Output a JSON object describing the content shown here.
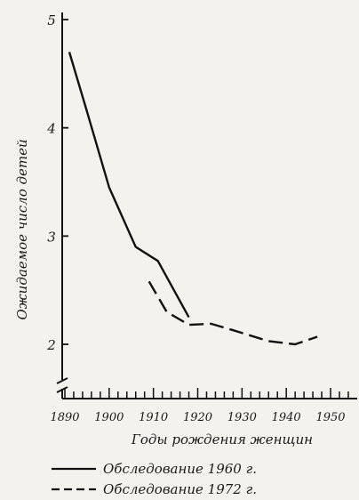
{
  "chart_data": {
    "type": "line",
    "xlabel": "Годы рождения женщин",
    "ylabel": "Ожидаемое число детей",
    "xlim": [
      1890,
      1955
    ],
    "ylim": [
      1.5,
      5
    ],
    "x_ticks": [
      1890,
      1900,
      1910,
      1920,
      1930,
      1940,
      1950
    ],
    "x_tick_labels": [
      "1890",
      "1900",
      "1910",
      "1920",
      "1930",
      "1940",
      "1950"
    ],
    "y_ticks": [
      2,
      3,
      4,
      5
    ],
    "y_tick_labels": [
      "2",
      "3",
      "4",
      "5"
    ],
    "y_axis_break": true,
    "grid": false,
    "legend_position": "bottom-left",
    "series": [
      {
        "name": "Обследование 1960 г.",
        "style": "solid",
        "x": [
          1891,
          1895,
          1900,
          1906,
          1911,
          1918
        ],
        "y": [
          4.7,
          4.15,
          3.45,
          2.9,
          2.77,
          2.25
        ]
      },
      {
        "name": "Обследование 1972 г.",
        "style": "dashed",
        "x": [
          1909,
          1913,
          1918,
          1923,
          1928,
          1936,
          1942,
          1947
        ],
        "y": [
          2.58,
          2.3,
          2.18,
          2.19,
          2.13,
          2.03,
          2.0,
          2.07
        ]
      }
    ],
    "legend": [
      {
        "label": "Обследование  1960 г.",
        "style": "solid"
      },
      {
        "label": "Обследование  1972 г.",
        "style": "dashed"
      }
    ]
  }
}
